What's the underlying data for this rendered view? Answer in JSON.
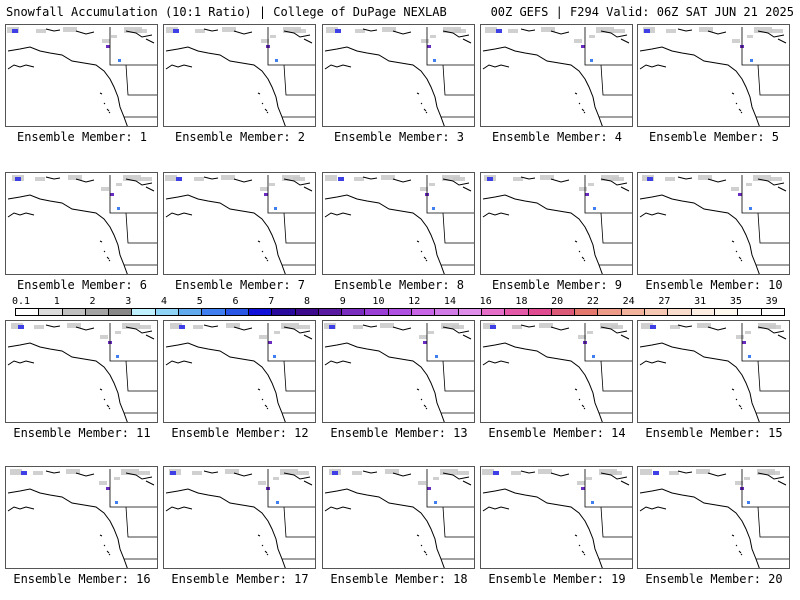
{
  "header": {
    "left": "Snowfall Accumulation (10:1 Ratio) | College of DuPage NEXLAB",
    "right": "00Z GEFS | F294 Valid: 06Z SAT JUN 21 2025"
  },
  "colorbar": {
    "labels": [
      "0.1",
      "1",
      "2",
      "3",
      "4",
      "5",
      "6",
      "7",
      "8",
      "9",
      "10",
      "12",
      "14",
      "16",
      "18",
      "20",
      "22",
      "24",
      "27",
      "31",
      "35",
      "39"
    ],
    "colors": [
      "#ffffff",
      "#dcdcdc",
      "#c0c0c0",
      "#a4a4a4",
      "#888888",
      "#bff0ff",
      "#8fd4f7",
      "#62aaee",
      "#3f7ff0",
      "#2a56e6",
      "#1010d8",
      "#2a0a9c",
      "#3c0a8a",
      "#5a1aa0",
      "#7a2cbe",
      "#9a3ed6",
      "#b050e0",
      "#c864e6",
      "#d27ae6",
      "#de8ee8",
      "#e46ec8",
      "#e45aa8",
      "#e04a90",
      "#dc5a78",
      "#e4786e",
      "#ee9a88",
      "#f2b29c",
      "#f6c8b4",
      "#fadccc",
      "#fdeee4",
      "#fff8ee",
      "#ffffff",
      "#ffffff"
    ]
  },
  "members": [
    {
      "caption": "Ensemble Member: 1"
    },
    {
      "caption": "Ensemble Member: 2"
    },
    {
      "caption": "Ensemble Member: 3"
    },
    {
      "caption": "Ensemble Member: 4"
    },
    {
      "caption": "Ensemble Member: 5"
    },
    {
      "caption": "Ensemble Member: 6"
    },
    {
      "caption": "Ensemble Member: 7"
    },
    {
      "caption": "Ensemble Member: 8"
    },
    {
      "caption": "Ensemble Member: 9"
    },
    {
      "caption": "Ensemble Member: 10"
    },
    {
      "caption": "Ensemble Member: 11"
    },
    {
      "caption": "Ensemble Member: 12"
    },
    {
      "caption": "Ensemble Member: 13"
    },
    {
      "caption": "Ensemble Member: 14"
    },
    {
      "caption": "Ensemble Member: 15"
    },
    {
      "caption": "Ensemble Member: 16"
    },
    {
      "caption": "Ensemble Member: 17"
    },
    {
      "caption": "Ensemble Member: 18"
    },
    {
      "caption": "Ensemble Member: 19"
    },
    {
      "caption": "Ensemble Member: 20"
    }
  ]
}
